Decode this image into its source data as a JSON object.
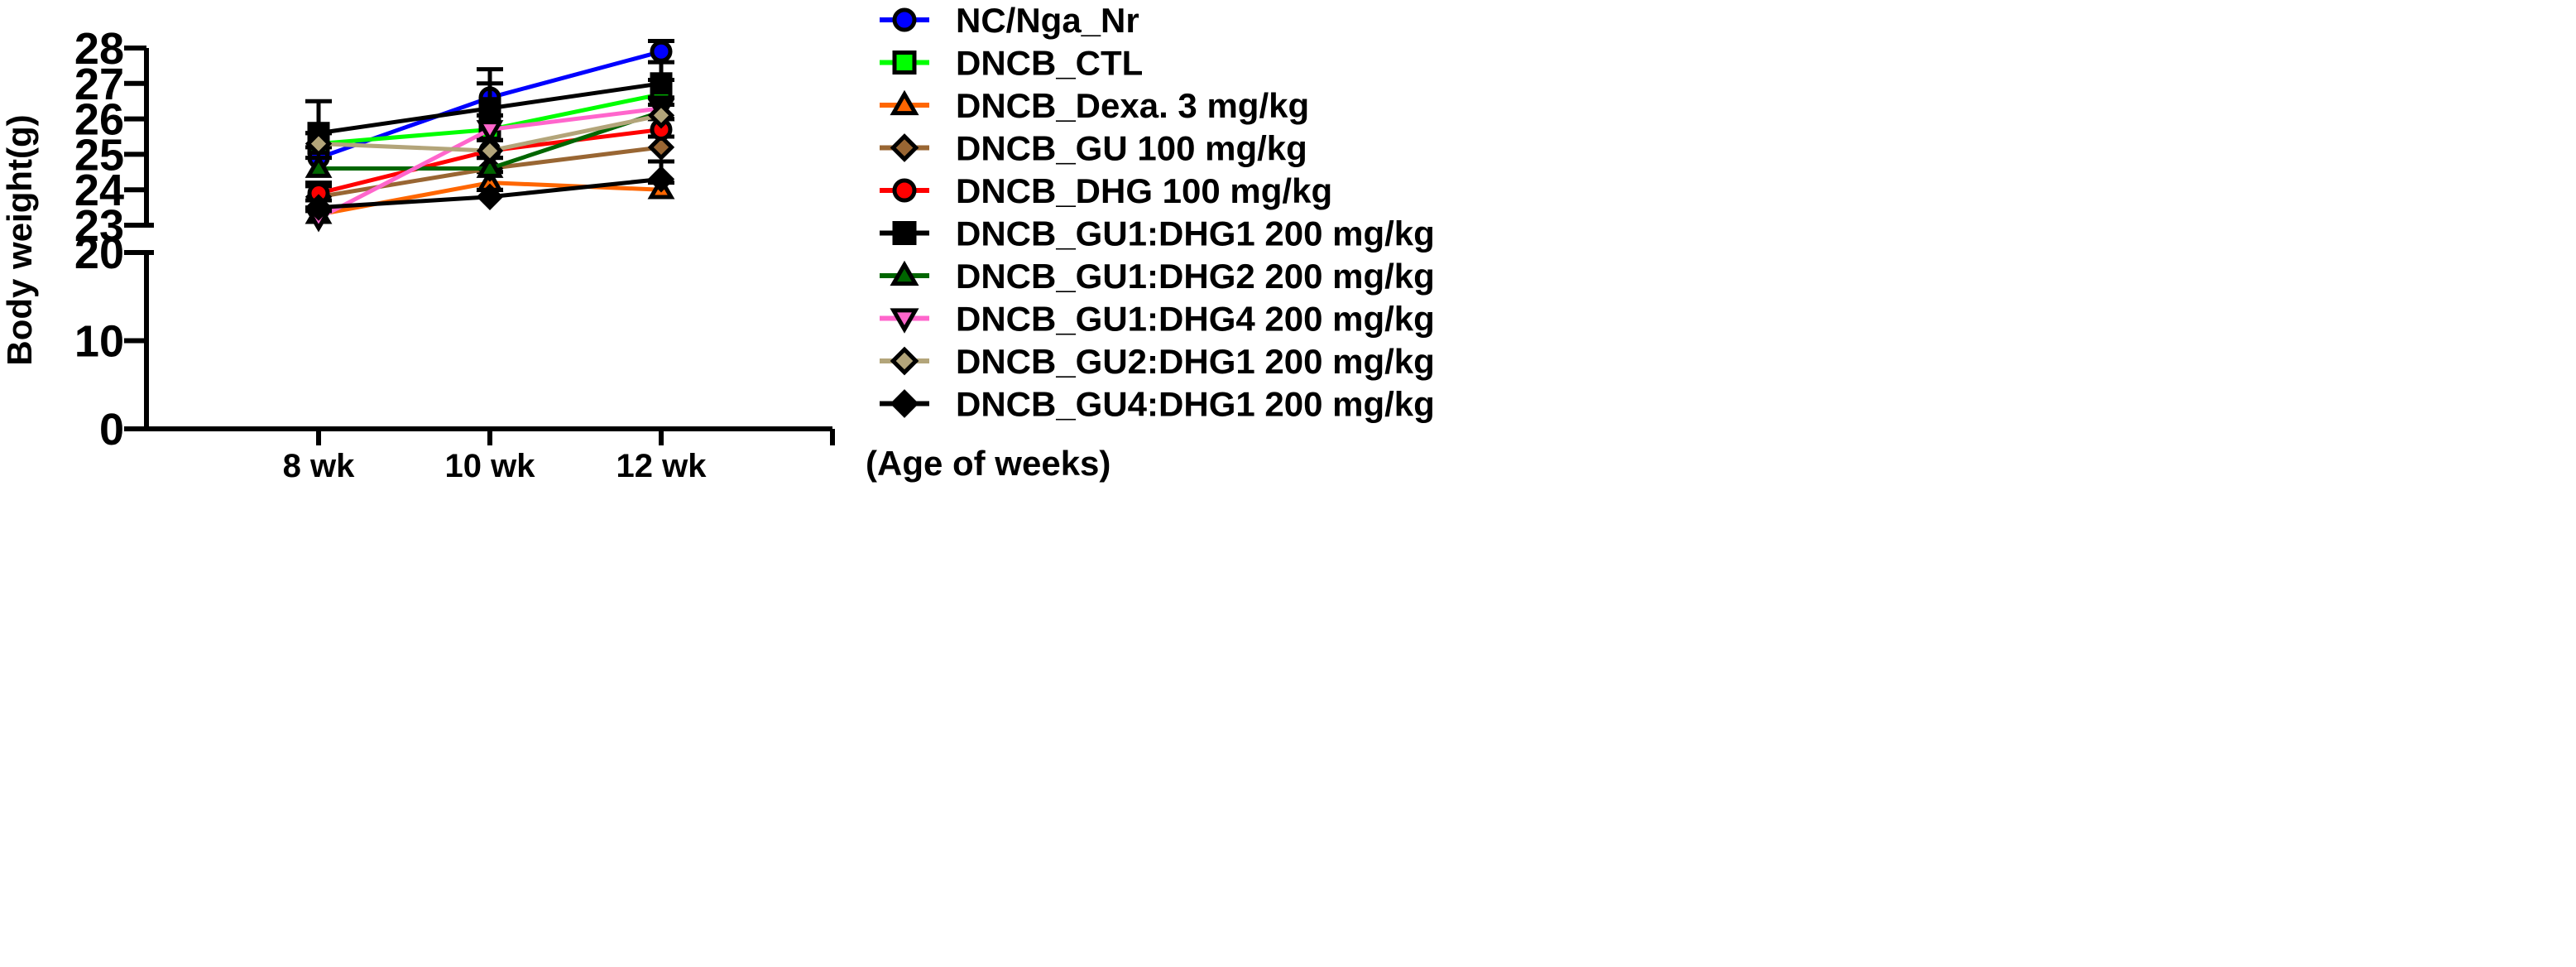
{
  "chart_data": {
    "type": "line",
    "title": "",
    "ylabel": "Body weight(g)",
    "xlabel": "(Age of weeks)",
    "categories": [
      "8 wk",
      "10 wk",
      "12 wk"
    ],
    "y_axis_break": {
      "lower_range": [
        0,
        20
      ],
      "lower_ticks": [
        "0",
        "10",
        "20"
      ],
      "upper_range": [
        23,
        28
      ],
      "upper_ticks": [
        "23",
        "24",
        "25",
        "26",
        "27",
        "28"
      ]
    },
    "series": [
      {
        "name": "NC/Nga_Nr",
        "color": "#0000ff",
        "marker": "circle",
        "values": [
          24.9,
          26.6,
          27.9
        ],
        "errors": [
          0.3,
          0.4,
          0.3
        ]
      },
      {
        "name": "DNCB_CTL",
        "color": "#00ff00",
        "marker": "square",
        "values": [
          25.3,
          25.7,
          26.7
        ],
        "errors": [
          0.3,
          0.4,
          0.4
        ]
      },
      {
        "name": "DNCB_Dexa. 3 mg/kg",
        "color": "#ff6600",
        "marker": "triangle-up",
        "values": [
          23.3,
          24.2,
          24.0
        ],
        "errors": [
          0.2,
          0.3,
          0.2
        ]
      },
      {
        "name": "DNCB_GU 100 mg/kg",
        "color": "#996633",
        "marker": "diamond",
        "values": [
          23.8,
          24.6,
          25.2
        ],
        "errors": [
          0.3,
          0.3,
          0.3
        ]
      },
      {
        "name": "DNCB_DHG 100 mg/kg",
        "color": "#ff0000",
        "marker": "circle",
        "values": [
          23.9,
          25.1,
          25.7
        ],
        "errors": [
          0.3,
          0.3,
          0.3
        ]
      },
      {
        "name": "DNCB_GU1:DHG1 200 mg/kg",
        "color": "#000000",
        "marker": "square",
        "values": [
          25.6,
          26.3,
          27.0
        ],
        "errors": [
          0.9,
          1.1,
          0.6
        ]
      },
      {
        "name": "DNCB_GU1:DHG2 200 mg/kg",
        "color": "#006600",
        "marker": "triangle-up",
        "values": [
          24.6,
          24.6,
          26.2
        ],
        "errors": [
          0.3,
          0.3,
          0.4
        ]
      },
      {
        "name": "DNCB_GU1:DHG4 200 mg/kg",
        "color": "#ff66cc",
        "marker": "triangle-down",
        "values": [
          23.2,
          25.7,
          26.3
        ],
        "errors": [
          0.2,
          0.4,
          0.3
        ]
      },
      {
        "name": "DNCB_GU2:DHG1 200 mg/kg",
        "color": "#b3a57a",
        "marker": "diamond",
        "values": [
          25.3,
          25.1,
          26.1
        ],
        "errors": [
          0.3,
          0.3,
          0.3
        ]
      },
      {
        "name": "DNCB_GU4:DHG1 200 mg/kg",
        "color": "#000000",
        "marker": "diamond",
        "values": [
          23.5,
          23.8,
          24.3
        ],
        "errors": [
          0.2,
          0.2,
          0.5
        ]
      }
    ]
  }
}
